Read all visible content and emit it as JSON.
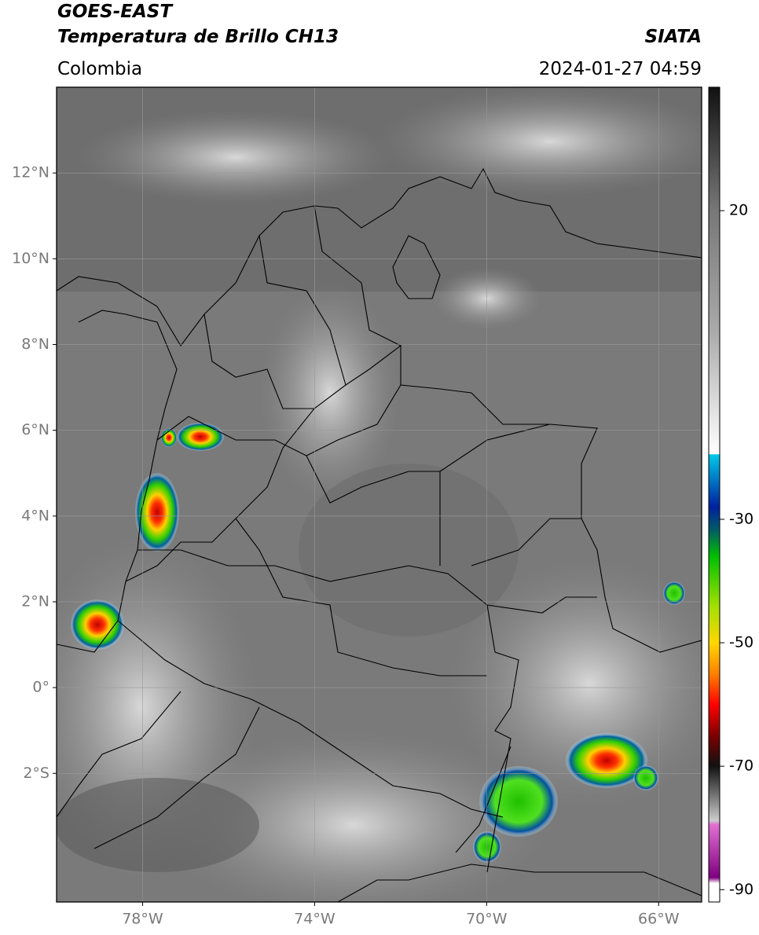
{
  "header": {
    "title": "GOES-EAST",
    "subtitle": "Temperatura de Brillo CH13",
    "source": "SIATA",
    "region": "Colombia",
    "datetime": "2024-01-27 04:59"
  },
  "map": {
    "lon_range": [
      -80,
      -65
    ],
    "lat_range": [
      -5,
      14
    ],
    "lat_ticks": [
      {
        "value": 12,
        "label": "12°N"
      },
      {
        "value": 10,
        "label": "10°N"
      },
      {
        "value": 8,
        "label": "8°N"
      },
      {
        "value": 6,
        "label": "6°N"
      },
      {
        "value": 4,
        "label": "4°N"
      },
      {
        "value": 2,
        "label": "2°N"
      },
      {
        "value": 0,
        "label": "0°"
      },
      {
        "value": -2,
        "label": "2°S"
      }
    ],
    "lon_ticks": [
      {
        "value": -78,
        "label": "78°W"
      },
      {
        "value": -74,
        "label": "74°W"
      },
      {
        "value": -70,
        "label": "70°W"
      },
      {
        "value": -66,
        "label": "66°W"
      }
    ]
  },
  "colorbar": {
    "range": [
      -92,
      40
    ],
    "ticks": [
      20,
      -30,
      -50,
      -70,
      -90
    ]
  }
}
